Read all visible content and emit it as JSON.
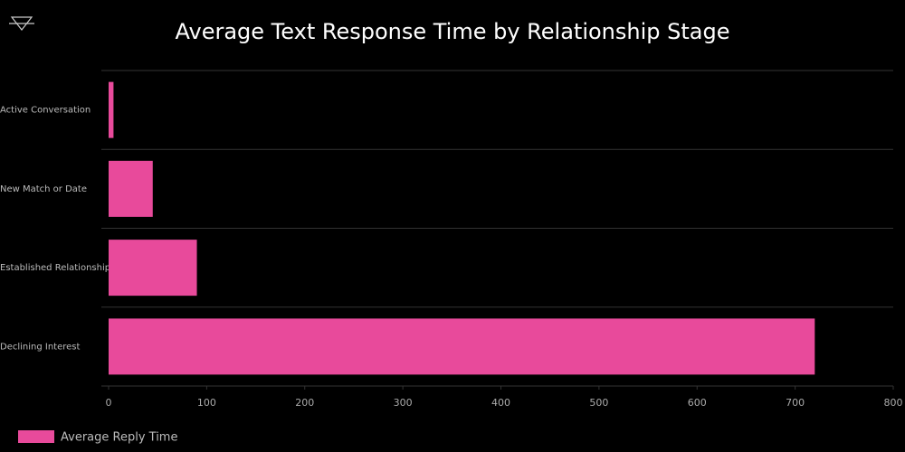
{
  "chart_data": {
    "type": "bar",
    "title": "Average Text Response Time by Relationship Stage",
    "categories": [
      "Active Conversation",
      "New Match or Date",
      "Established Relationship",
      "Declining Interest"
    ],
    "series": [
      {
        "name": "Average Reply Time",
        "color": "#e84a9b",
        "values": [
          5,
          45,
          90,
          720
        ]
      }
    ],
    "xlim": [
      0,
      800
    ],
    "xticks": [
      0,
      100,
      200,
      300,
      400,
      500,
      600,
      700,
      800
    ]
  }
}
